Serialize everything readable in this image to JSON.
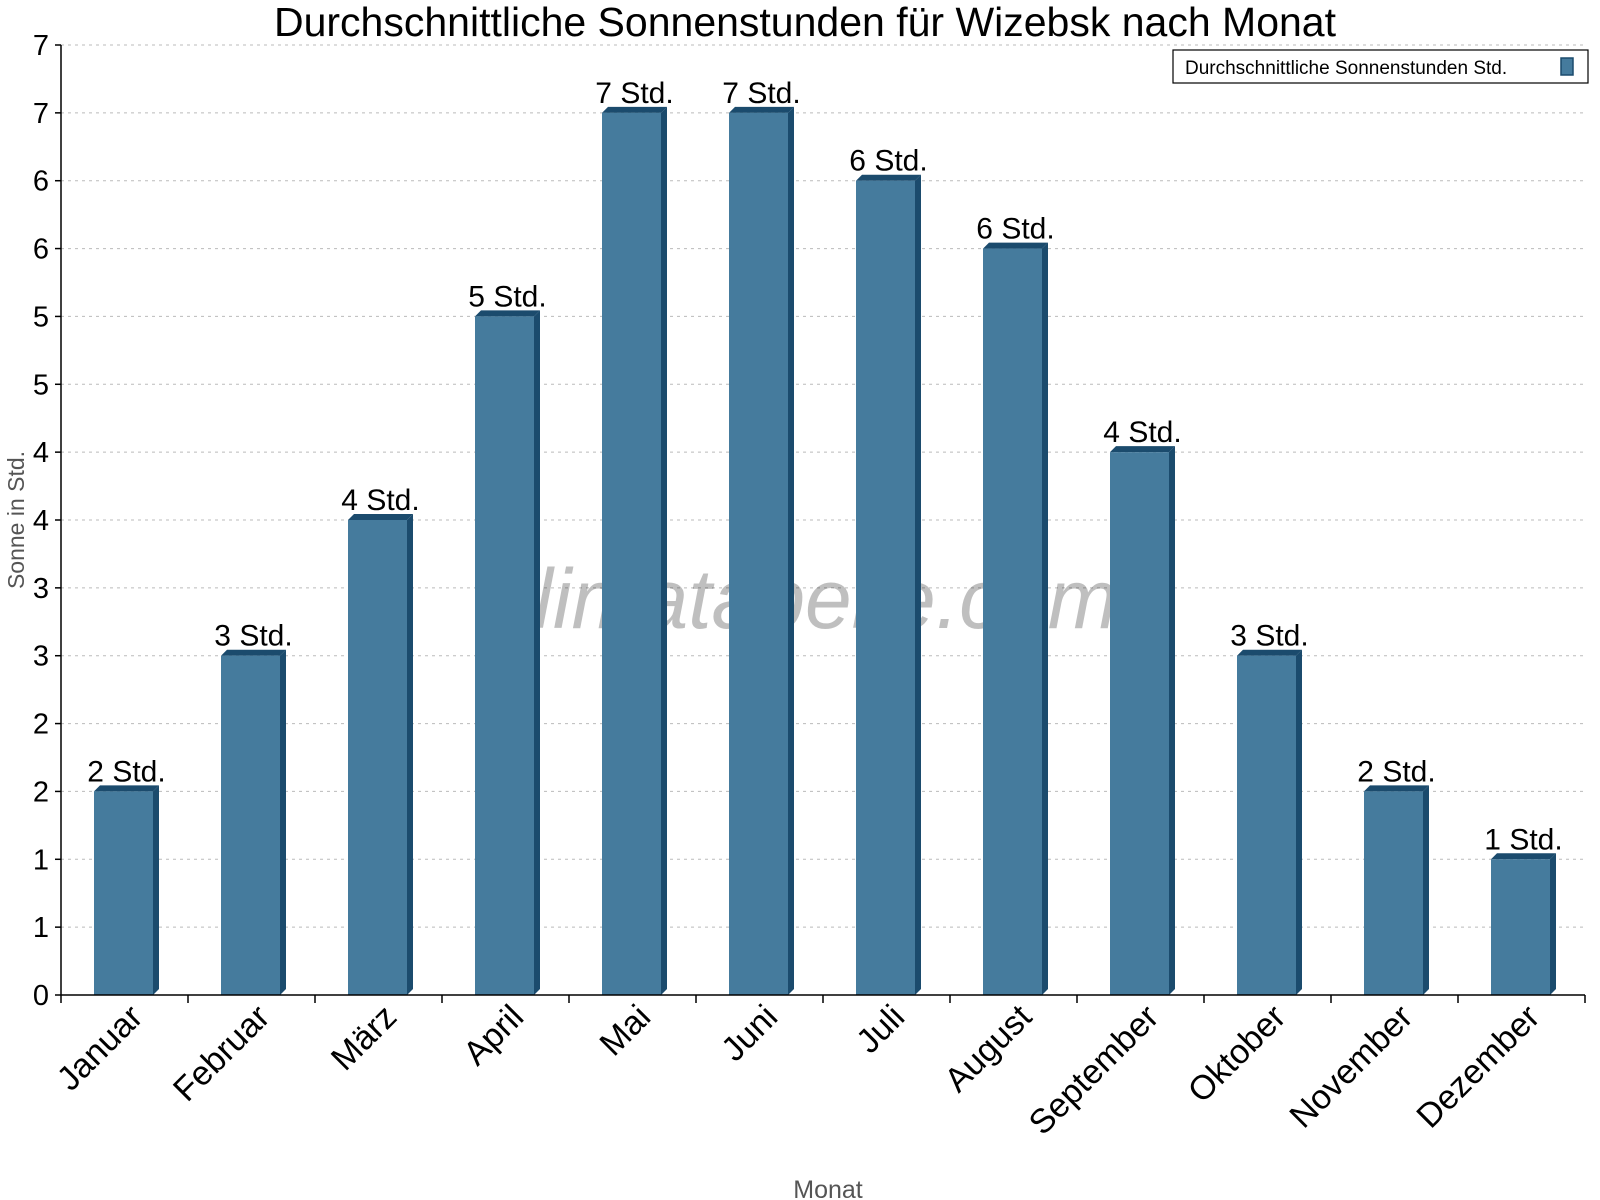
{
  "chart_data": {
    "type": "bar",
    "title": "Durchschnittliche Sonnenstunden für Wizebsk nach Monat",
    "xlabel": "Monat",
    "ylabel": "Sonne in Std.",
    "categories": [
      "Januar",
      "Februar",
      "März",
      "April",
      "Mai",
      "Juni",
      "Juli",
      "August",
      "September",
      "Oktober",
      "November",
      "Dezember"
    ],
    "series": [
      {
        "name": "Durchschnittliche Sonnenstunden Std.",
        "values": [
          1.5,
          2.5,
          3.5,
          5.0,
          6.5,
          6.5,
          6.0,
          5.5,
          4.0,
          2.5,
          1.5,
          1.0
        ],
        "data_labels": [
          "2 Std.",
          "3 Std.",
          "4 Std.",
          "5 Std.",
          "7 Std.",
          "7 Std.",
          "6 Std.",
          "6 Std.",
          "4 Std.",
          "3 Std.",
          "2 Std.",
          "1 Std."
        ]
      }
    ],
    "ylim": [
      0,
      7
    ],
    "y_ticks": [
      0,
      0.5,
      1,
      1.5,
      2,
      2.5,
      3,
      3.5,
      4,
      4.5,
      5,
      5.5,
      6,
      6.5,
      7
    ],
    "y_tick_labels": [
      "0",
      "1",
      "1",
      "2",
      "2",
      "3",
      "3",
      "4",
      "4",
      "5",
      "5",
      "6",
      "6",
      "7",
      "7"
    ],
    "grid": true,
    "legend": "top-right",
    "colors": {
      "bar": "#457b9d",
      "bar_side": "#1b4b6d"
    },
    "watermark": "klimatabelle.com"
  }
}
